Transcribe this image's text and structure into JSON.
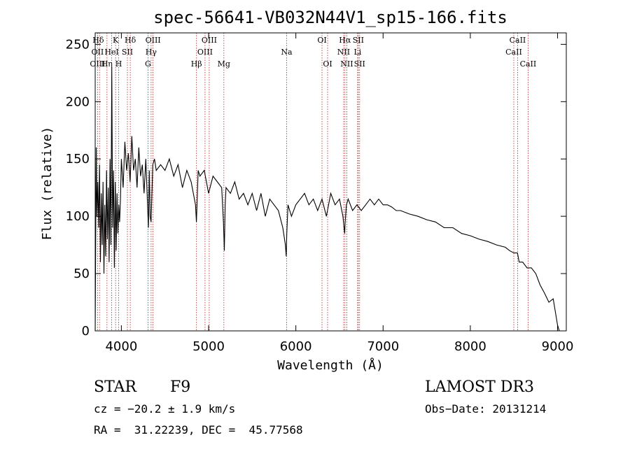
{
  "chart_data": {
    "type": "line",
    "title": "spec-56641-VB032N44V1_sp15-166.fits",
    "xlabel": "Wavelength (Å)",
    "ylabel": "Flux (relative)",
    "xlim": [
      3700,
      9100
    ],
    "ylim": [
      0,
      260
    ],
    "xticks": [
      4000,
      5000,
      6000,
      7000,
      8000,
      9000
    ],
    "yticks": [
      0,
      50,
      100,
      150,
      200,
      250
    ],
    "series": [
      {
        "name": "spectrum",
        "x": [
          3700,
          3705,
          3712,
          3720,
          3730,
          3740,
          3750,
          3760,
          3770,
          3780,
          3790,
          3800,
          3810,
          3820,
          3830,
          3840,
          3850,
          3860,
          3870,
          3880,
          3890,
          3900,
          3910,
          3920,
          3930,
          3940,
          3950,
          3960,
          3970,
          3980,
          3990,
          4000,
          4020,
          4040,
          4060,
          4080,
          4100,
          4120,
          4140,
          4160,
          4180,
          4200,
          4220,
          4240,
          4260,
          4280,
          4300,
          4310,
          4320,
          4330,
          4340,
          4360,
          4380,
          4400,
          4450,
          4500,
          4550,
          4600,
          4650,
          4700,
          4750,
          4800,
          4850,
          4860,
          4880,
          4900,
          4950,
          5000,
          5050,
          5100,
          5150,
          5170,
          5180,
          5190,
          5200,
          5250,
          5300,
          5350,
          5400,
          5450,
          5500,
          5550,
          5600,
          5650,
          5700,
          5750,
          5800,
          5850,
          5880,
          5890,
          5896,
          5910,
          5950,
          6000,
          6050,
          6100,
          6150,
          6200,
          6250,
          6300,
          6350,
          6400,
          6450,
          6500,
          6540,
          6560,
          6565,
          6580,
          6600,
          6650,
          6700,
          6750,
          6800,
          6850,
          6900,
          6950,
          7000,
          7050,
          7100,
          7150,
          7200,
          7300,
          7400,
          7500,
          7600,
          7700,
          7800,
          7900,
          8000,
          8100,
          8200,
          8300,
          8400,
          8450,
          8500,
          8540,
          8560,
          8600,
          8650,
          8700,
          8750,
          8800,
          8850,
          8900,
          8950,
          9000,
          9020,
          9030
        ],
        "values": [
          0,
          70,
          160,
          100,
          130,
          90,
          145,
          60,
          120,
          75,
          130,
          50,
          110,
          65,
          140,
          80,
          125,
          60,
          150,
          75,
          230,
          90,
          140,
          55,
          130,
          70,
          120,
          85,
          110,
          95,
          115,
          150,
          125,
          165,
          140,
          155,
          130,
          170,
          140,
          150,
          125,
          160,
          135,
          145,
          120,
          150,
          110,
          90,
          140,
          100,
          95,
          145,
          150,
          140,
          145,
          140,
          150,
          135,
          145,
          125,
          140,
          130,
          110,
          95,
          140,
          135,
          140,
          120,
          135,
          130,
          125,
          95,
          70,
          110,
          125,
          120,
          130,
          115,
          120,
          110,
          120,
          105,
          120,
          100,
          115,
          110,
          105,
          90,
          75,
          65,
          85,
          110,
          100,
          110,
          115,
          120,
          110,
          115,
          105,
          115,
          100,
          120,
          110,
          115,
          100,
          85,
          95,
          110,
          115,
          105,
          110,
          105,
          110,
          115,
          110,
          115,
          110,
          110,
          108,
          105,
          105,
          102,
          100,
          97,
          95,
          90,
          90,
          85,
          83,
          80,
          78,
          75,
          73,
          70,
          68,
          68,
          60,
          60,
          55,
          55,
          50,
          40,
          33,
          25,
          28,
          5,
          0,
          0
        ]
      }
    ],
    "line_labels": [
      {
        "text": "Hδ",
        "x": 3735,
        "row": 1
      },
      {
        "text": "OII",
        "x": 3727,
        "row": 2
      },
      {
        "text": "OIII",
        "x": 3727,
        "row": 3
      },
      {
        "text": "K",
        "x": 3934,
        "row": 1
      },
      {
        "text": "HeI",
        "x": 3889,
        "row": 2
      },
      {
        "text": "Hη",
        "x": 3835,
        "row": 3
      },
      {
        "text": "Hδ",
        "x": 4102,
        "row": 1
      },
      {
        "text": "SII",
        "x": 4069,
        "row": 2
      },
      {
        "text": "H",
        "x": 3969,
        "row": 3
      },
      {
        "text": "OIII",
        "x": 4363,
        "row": 1
      },
      {
        "text": "Hγ",
        "x": 4341,
        "row": 2
      },
      {
        "text": "G",
        "x": 4305,
        "row": 3
      },
      {
        "text": "OIII",
        "x": 5007,
        "row": 1
      },
      {
        "text": "OIII",
        "x": 4959,
        "row": 2
      },
      {
        "text": "Hβ",
        "x": 4861,
        "row": 3
      },
      {
        "text": "Mg",
        "x": 5175,
        "row": 3
      },
      {
        "text": "Na",
        "x": 5894,
        "row": 2
      },
      {
        "text": "OI",
        "x": 6300,
        "row": 1
      },
      {
        "text": "OI",
        "x": 6364,
        "row": 3
      },
      {
        "text": "Hα",
        "x": 6563,
        "row": 1
      },
      {
        "text": "SII",
        "x": 6716,
        "row": 1
      },
      {
        "text": "NII",
        "x": 6548,
        "row": 2
      },
      {
        "text": "Li",
        "x": 6708,
        "row": 2
      },
      {
        "text": "NII",
        "x": 6584,
        "row": 3
      },
      {
        "text": "SII",
        "x": 6731,
        "row": 3
      },
      {
        "text": "CaII",
        "x": 8542,
        "row": 1
      },
      {
        "text": "CaII",
        "x": 8498,
        "row": 2
      },
      {
        "text": "CaII",
        "x": 8662,
        "row": 3
      }
    ],
    "marker_lines": [
      3727,
      3750,
      3835,
      3889,
      3934,
      3969,
      4069,
      4102,
      4305,
      4341,
      4363,
      4861,
      4959,
      5007,
      5175,
      5894,
      6300,
      6364,
      6548,
      6563,
      6584,
      6708,
      6716,
      6731,
      8498,
      8542,
      8662
    ]
  },
  "info": {
    "class": "STAR",
    "subclass": "F9",
    "survey": "LAMOST DR3",
    "cz": "cz = −20.2 ± 1.9 km/s",
    "obs_date": "Obs−Date: 20131214",
    "coords": "RA =  31.22239, DEC =  45.77568"
  },
  "colors": {
    "spectrum": "#000000",
    "marker": "#b22222",
    "axes": "#000000"
  }
}
